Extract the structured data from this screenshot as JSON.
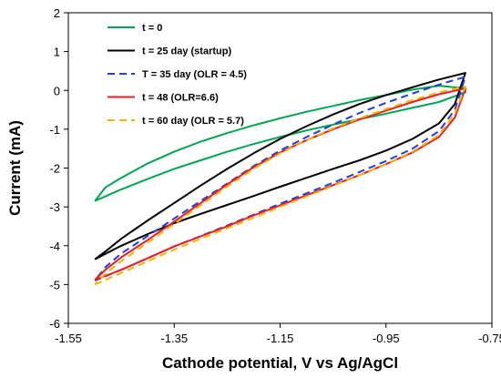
{
  "chart_data": {
    "type": "line",
    "title": "",
    "xlabel": "Cathode potential, V vs Ag/AgCl",
    "ylabel": "Current (mA)",
    "xlim": [
      -1.55,
      -0.75
    ],
    "ylim": [
      -6,
      2
    ],
    "xticks": [
      -1.55,
      -1.35,
      -1.15,
      -0.95,
      -0.75
    ],
    "xtick_labels": [
      "-1.55",
      "-1.35",
      "-1.15",
      "-0.95",
      "-0.75"
    ],
    "yticks": [
      -6,
      -5,
      -4,
      -3,
      -2,
      -1,
      0,
      1,
      2
    ],
    "ytick_labels": [
      "-6",
      "-5",
      "-4",
      "-3",
      "-2",
      "-1",
      "0",
      "1",
      "2"
    ],
    "grid": false,
    "legend_position": "top-left",
    "series": [
      {
        "name": "t = 0",
        "color": "#00a651",
        "dash": "solid",
        "points": [
          [
            -1.5,
            -2.85
          ],
          [
            -1.45,
            -2.55
          ],
          [
            -1.4,
            -2.28
          ],
          [
            -1.35,
            -2.02
          ],
          [
            -1.3,
            -1.8
          ],
          [
            -1.25,
            -1.58
          ],
          [
            -1.2,
            -1.38
          ],
          [
            -1.15,
            -1.2
          ],
          [
            -1.1,
            -1.03
          ],
          [
            -1.05,
            -0.88
          ],
          [
            -1.0,
            -0.74
          ],
          [
            -0.95,
            -0.6
          ],
          [
            -0.9,
            -0.45
          ],
          [
            -0.85,
            -0.3
          ],
          [
            -0.8,
            -0.05
          ],
          [
            -0.8,
            0.05
          ],
          [
            -0.85,
            0.12
          ],
          [
            -0.9,
            0.02
          ],
          [
            -0.95,
            -0.12
          ],
          [
            -1.0,
            -0.25
          ],
          [
            -1.05,
            -0.4
          ],
          [
            -1.1,
            -0.55
          ],
          [
            -1.15,
            -0.72
          ],
          [
            -1.2,
            -0.9
          ],
          [
            -1.25,
            -1.1
          ],
          [
            -1.3,
            -1.32
          ],
          [
            -1.35,
            -1.58
          ],
          [
            -1.4,
            -1.88
          ],
          [
            -1.45,
            -2.25
          ],
          [
            -1.48,
            -2.5
          ],
          [
            -1.5,
            -2.85
          ]
        ]
      },
      {
        "name": "t = 25 day (startup)",
        "color": "#000000",
        "dash": "solid",
        "points": [
          [
            -1.5,
            -4.35
          ],
          [
            -1.45,
            -4.0
          ],
          [
            -1.4,
            -3.7
          ],
          [
            -1.35,
            -3.42
          ],
          [
            -1.3,
            -3.18
          ],
          [
            -1.25,
            -2.95
          ],
          [
            -1.2,
            -2.72
          ],
          [
            -1.15,
            -2.48
          ],
          [
            -1.1,
            -2.25
          ],
          [
            -1.05,
            -2.02
          ],
          [
            -1.0,
            -1.8
          ],
          [
            -0.95,
            -1.55
          ],
          [
            -0.9,
            -1.25
          ],
          [
            -0.85,
            -0.85
          ],
          [
            -0.82,
            -0.35
          ],
          [
            -0.8,
            0.45
          ],
          [
            -0.85,
            0.28
          ],
          [
            -0.9,
            0.08
          ],
          [
            -0.95,
            -0.12
          ],
          [
            -1.0,
            -0.35
          ],
          [
            -1.05,
            -0.62
          ],
          [
            -1.1,
            -0.92
          ],
          [
            -1.15,
            -1.25
          ],
          [
            -1.2,
            -1.62
          ],
          [
            -1.25,
            -2.02
          ],
          [
            -1.3,
            -2.45
          ],
          [
            -1.35,
            -2.9
          ],
          [
            -1.4,
            -3.35
          ],
          [
            -1.45,
            -3.82
          ],
          [
            -1.48,
            -4.15
          ],
          [
            -1.5,
            -4.35
          ]
        ]
      },
      {
        "name": "T = 35 day (OLR = 4.5)",
        "color": "#1f3fe0",
        "dash": "dashed",
        "points": [
          [
            -1.5,
            -4.9
          ],
          [
            -1.45,
            -4.62
          ],
          [
            -1.4,
            -4.32
          ],
          [
            -1.35,
            -4.02
          ],
          [
            -1.3,
            -3.75
          ],
          [
            -1.25,
            -3.48
          ],
          [
            -1.2,
            -3.2
          ],
          [
            -1.15,
            -2.92
          ],
          [
            -1.1,
            -2.65
          ],
          [
            -1.05,
            -2.38
          ],
          [
            -1.0,
            -2.1
          ],
          [
            -0.95,
            -1.82
          ],
          [
            -0.9,
            -1.5
          ],
          [
            -0.85,
            -1.05
          ],
          [
            -0.82,
            -0.5
          ],
          [
            -0.8,
            0.35
          ],
          [
            -0.85,
            0.15
          ],
          [
            -0.9,
            -0.08
          ],
          [
            -0.95,
            -0.32
          ],
          [
            -1.0,
            -0.58
          ],
          [
            -1.05,
            -0.88
          ],
          [
            -1.1,
            -1.2
          ],
          [
            -1.15,
            -1.55
          ],
          [
            -1.2,
            -1.95
          ],
          [
            -1.25,
            -2.4
          ],
          [
            -1.3,
            -2.85
          ],
          [
            -1.35,
            -3.3
          ],
          [
            -1.4,
            -3.75
          ],
          [
            -1.45,
            -4.2
          ],
          [
            -1.48,
            -4.55
          ],
          [
            -1.5,
            -4.9
          ]
        ]
      },
      {
        "name": "t = 48 (OLR=6.6)",
        "color": "#ee1c24",
        "dash": "solid",
        "points": [
          [
            -1.5,
            -4.88
          ],
          [
            -1.45,
            -4.62
          ],
          [
            -1.4,
            -4.32
          ],
          [
            -1.35,
            -4.02
          ],
          [
            -1.3,
            -3.76
          ],
          [
            -1.25,
            -3.5
          ],
          [
            -1.2,
            -3.22
          ],
          [
            -1.15,
            -2.96
          ],
          [
            -1.1,
            -2.7
          ],
          [
            -1.05,
            -2.44
          ],
          [
            -1.0,
            -2.18
          ],
          [
            -0.95,
            -1.9
          ],
          [
            -0.9,
            -1.6
          ],
          [
            -0.85,
            -1.2
          ],
          [
            -0.82,
            -0.7
          ],
          [
            -0.8,
            0.05
          ],
          [
            -0.85,
            -0.1
          ],
          [
            -0.9,
            -0.3
          ],
          [
            -0.95,
            -0.52
          ],
          [
            -1.0,
            -0.75
          ],
          [
            -1.05,
            -1.0
          ],
          [
            -1.1,
            -1.28
          ],
          [
            -1.15,
            -1.6
          ],
          [
            -1.2,
            -1.98
          ],
          [
            -1.25,
            -2.42
          ],
          [
            -1.3,
            -2.9
          ],
          [
            -1.35,
            -3.38
          ],
          [
            -1.4,
            -3.85
          ],
          [
            -1.45,
            -4.3
          ],
          [
            -1.48,
            -4.62
          ],
          [
            -1.5,
            -4.88
          ]
        ]
      },
      {
        "name": "t = 60 day (OLR = 5.7)",
        "color": "#f7b500",
        "dash": "dashed",
        "points": [
          [
            -1.5,
            -5.0
          ],
          [
            -1.45,
            -4.7
          ],
          [
            -1.4,
            -4.4
          ],
          [
            -1.35,
            -4.1
          ],
          [
            -1.3,
            -3.82
          ],
          [
            -1.25,
            -3.55
          ],
          [
            -1.2,
            -3.28
          ],
          [
            -1.15,
            -3.0
          ],
          [
            -1.1,
            -2.73
          ],
          [
            -1.05,
            -2.46
          ],
          [
            -1.0,
            -2.18
          ],
          [
            -0.95,
            -1.9
          ],
          [
            -0.9,
            -1.58
          ],
          [
            -0.85,
            -1.15
          ],
          [
            -0.82,
            -0.6
          ],
          [
            -0.8,
            0.1
          ],
          [
            -0.85,
            -0.05
          ],
          [
            -0.9,
            -0.25
          ],
          [
            -0.95,
            -0.48
          ],
          [
            -1.0,
            -0.72
          ],
          [
            -1.05,
            -0.98
          ],
          [
            -1.1,
            -1.28
          ],
          [
            -1.15,
            -1.62
          ],
          [
            -1.2,
            -2.02
          ],
          [
            -1.25,
            -2.48
          ],
          [
            -1.3,
            -2.96
          ],
          [
            -1.35,
            -3.44
          ],
          [
            -1.4,
            -3.92
          ],
          [
            -1.45,
            -4.4
          ],
          [
            -1.48,
            -4.72
          ],
          [
            -1.5,
            -5.0
          ]
        ]
      }
    ]
  }
}
